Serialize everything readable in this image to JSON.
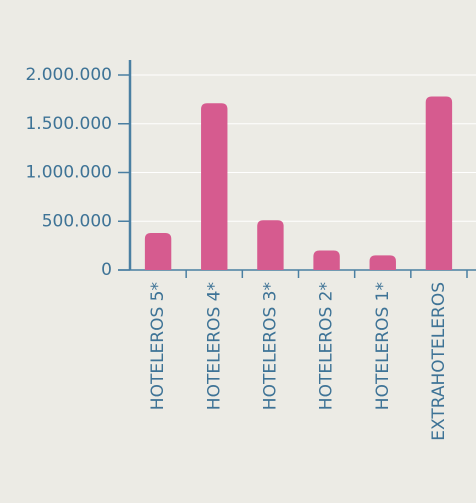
{
  "chart_data": {
    "type": "bar",
    "categories": [
      "HOTELEROS 5*",
      "HOTELEROS 4*",
      "HOTELEROS 3*",
      "HOTELEROS 2*",
      "HOTELEROS 1*",
      "EXTRAHOTELEROS"
    ],
    "values": [
      380000,
      1710000,
      510000,
      200000,
      150000,
      1780000
    ],
    "color": "#d65b8f",
    "ylim": [
      0,
      2000000
    ],
    "yticks": [
      0,
      {
        "value": 500000,
        "label": "500.000"
      },
      {
        "value": 1000000,
        "label": "1.000.000"
      },
      {
        "value": 1500000,
        "label": "1.500.000"
      },
      {
        "value": 2000000,
        "label": "2.000.000"
      }
    ],
    "grid": true
  }
}
